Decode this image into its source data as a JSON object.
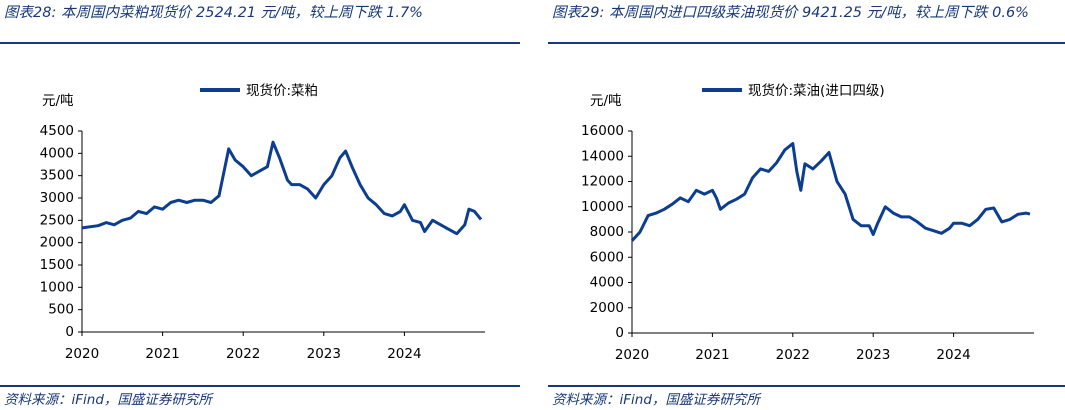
{
  "chart_data": [
    {
      "type": "line",
      "title": "图表28:  本周国内菜粕现货价 2524.21 元/吨，较上周下跌 1.7%",
      "source": "资料来源：iFind，国盛证券研究所",
      "ylabel": "元/吨",
      "legend": "top",
      "grid": false,
      "xlim": [
        2020,
        2025
      ],
      "xticks": [
        2020,
        2021,
        2022,
        2023,
        2024
      ],
      "ylim": [
        0,
        4500
      ],
      "yticks": [
        0,
        500,
        1000,
        1500,
        2000,
        2500,
        3000,
        3500,
        4000,
        4500
      ],
      "x": [
        2020.0,
        2020.2,
        2020.3,
        2020.4,
        2020.5,
        2020.6,
        2020.7,
        2020.8,
        2020.9,
        2021.0,
        2021.1,
        2021.2,
        2021.3,
        2021.4,
        2021.5,
        2021.6,
        2021.7,
        2021.82,
        2021.9,
        2022.0,
        2022.1,
        2022.2,
        2022.3,
        2022.37,
        2022.45,
        2022.55,
        2022.6,
        2022.7,
        2022.8,
        2022.9,
        2023.0,
        2023.1,
        2023.2,
        2023.27,
        2023.35,
        2023.45,
        2023.55,
        2023.65,
        2023.75,
        2023.85,
        2023.95,
        2024.0,
        2024.1,
        2024.2,
        2024.25,
        2024.35,
        2024.45,
        2024.55,
        2024.65,
        2024.75,
        2024.8,
        2024.87,
        2024.95
      ],
      "series": [
        {
          "name": "现货价:菜粕",
          "color": "#0b3d91",
          "values": [
            2330,
            2380,
            2450,
            2400,
            2500,
            2550,
            2700,
            2650,
            2800,
            2750,
            2900,
            2950,
            2900,
            2950,
            2950,
            2900,
            3050,
            4100,
            3850,
            3700,
            3500,
            3600,
            3700,
            4250,
            3900,
            3400,
            3300,
            3300,
            3200,
            3000,
            3300,
            3500,
            3900,
            4050,
            3700,
            3300,
            3000,
            2850,
            2650,
            2600,
            2700,
            2850,
            2500,
            2450,
            2250,
            2500,
            2400,
            2300,
            2200,
            2400,
            2750,
            2700,
            2520
          ]
        }
      ]
    },
    {
      "type": "line",
      "title": "图表29:  本周国内进口四级菜油现货价  9421.25  元/吨，较上周下跌 0.6%",
      "source": "资料来源：iFind，国盛证券研究所",
      "ylabel": "元/吨",
      "legend": "top",
      "grid": false,
      "xlim": [
        2020,
        2025
      ],
      "xticks": [
        2020,
        2021,
        2022,
        2023,
        2024
      ],
      "ylim": [
        0,
        16000
      ],
      "yticks": [
        0,
        2000,
        4000,
        6000,
        8000,
        10000,
        12000,
        14000,
        16000
      ],
      "x": [
        2020.0,
        2020.1,
        2020.2,
        2020.3,
        2020.4,
        2020.5,
        2020.6,
        2020.7,
        2020.8,
        2020.9,
        2021.0,
        2021.05,
        2021.1,
        2021.2,
        2021.3,
        2021.4,
        2021.5,
        2021.6,
        2021.7,
        2021.8,
        2021.9,
        2022.0,
        2022.05,
        2022.1,
        2022.15,
        2022.25,
        2022.35,
        2022.45,
        2022.55,
        2022.65,
        2022.75,
        2022.85,
        2022.95,
        2023.0,
        2023.05,
        2023.15,
        2023.25,
        2023.35,
        2023.45,
        2023.55,
        2023.65,
        2023.75,
        2023.85,
        2023.95,
        2024.0,
        2024.1,
        2024.2,
        2024.3,
        2024.4,
        2024.5,
        2024.6,
        2024.7,
        2024.8,
        2024.9,
        2024.95
      ],
      "series": [
        {
          "name": "现货价:菜油(进口四级)",
          "color": "#0b3d91",
          "values": [
            7300,
            8000,
            9300,
            9500,
            9800,
            10200,
            10700,
            10400,
            11300,
            11000,
            11300,
            10700,
            9800,
            10300,
            10600,
            11000,
            12300,
            13000,
            12800,
            13500,
            14500,
            15000,
            12800,
            11300,
            13400,
            13000,
            13600,
            14300,
            12000,
            11000,
            9000,
            8500,
            8500,
            7800,
            8600,
            10000,
            9500,
            9200,
            9200,
            8800,
            8300,
            8100,
            7900,
            8300,
            8700,
            8700,
            8500,
            9000,
            9800,
            9900,
            8800,
            9000,
            9400,
            9500,
            9420
          ]
        }
      ]
    }
  ]
}
